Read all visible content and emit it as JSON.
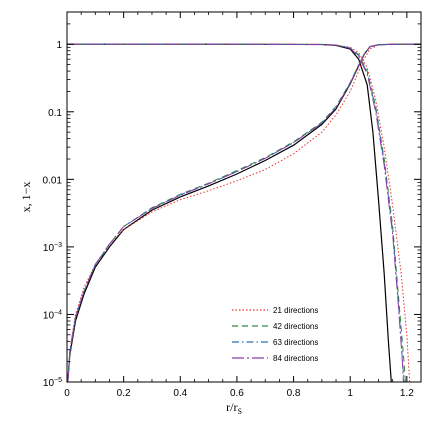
{
  "chart_data": {
    "type": "line",
    "xlabel": "r/r",
    "xlabel_sub": "S",
    "ylabel": "x, 1−x",
    "xlim": [
      0,
      1.25
    ],
    "ylim": [
      1e-05,
      3
    ],
    "y_scale": "log",
    "grid": false,
    "legend_position": "bottom-right",
    "x_ticks": [
      {
        "value": 0,
        "label": "0"
      },
      {
        "value": 0.2,
        "label": "0.2"
      },
      {
        "value": 0.4,
        "label": "0.4"
      },
      {
        "value": 0.6,
        "label": "0.6"
      },
      {
        "value": 0.8,
        "label": "0.8"
      },
      {
        "value": 1.0,
        "label": "1"
      },
      {
        "value": 1.2,
        "label": "1.2"
      }
    ],
    "y_ticks": [
      {
        "value": 1,
        "label": "1"
      },
      {
        "value": 0.1,
        "label": "0.1"
      },
      {
        "value": 0.01,
        "label": "0.01"
      },
      {
        "value": 0.001,
        "label": "10",
        "exp": "−3"
      },
      {
        "value": 0.0001,
        "label": "10",
        "exp": "−4"
      },
      {
        "value": 1e-05,
        "label": "10",
        "exp": "−5"
      }
    ],
    "series": [
      {
        "name": "",
        "color": "#000000",
        "dash": "",
        "neutral": [
          [
            0.003,
            1e-05
          ],
          [
            0.01,
            2.5e-05
          ],
          [
            0.03,
            8e-05
          ],
          [
            0.06,
            0.0002
          ],
          [
            0.1,
            0.0005
          ],
          [
            0.15,
            0.001
          ],
          [
            0.2,
            0.0018
          ],
          [
            0.3,
            0.0035
          ],
          [
            0.4,
            0.0055
          ],
          [
            0.5,
            0.008
          ],
          [
            0.6,
            0.012
          ],
          [
            0.7,
            0.019
          ],
          [
            0.8,
            0.032
          ],
          [
            0.9,
            0.065
          ],
          [
            0.95,
            0.11
          ],
          [
            1.0,
            0.26
          ],
          [
            1.03,
            0.48
          ],
          [
            1.05,
            0.72
          ],
          [
            1.07,
            0.92
          ],
          [
            1.1,
            0.985
          ],
          [
            1.15,
            0.998
          ],
          [
            1.2,
            1
          ],
          [
            1.25,
            1
          ]
        ],
        "ionized": [
          [
            0,
            1
          ],
          [
            0.5,
            1
          ],
          [
            0.9,
            0.99
          ],
          [
            0.95,
            0.96
          ],
          [
            1.0,
            0.85
          ],
          [
            1.03,
            0.6
          ],
          [
            1.06,
            0.25
          ],
          [
            1.08,
            0.05
          ],
          [
            1.1,
            0.005
          ],
          [
            1.12,
            0.0004
          ],
          [
            1.135,
            4e-05
          ],
          [
            1.145,
            1e-05
          ]
        ]
      },
      {
        "name": "21 directions",
        "color": "#e8302a",
        "dash": "1.5,2",
        "neutral": [
          [
            0.003,
            1e-05
          ],
          [
            0.01,
            3e-05
          ],
          [
            0.03,
            0.0001
          ],
          [
            0.06,
            0.00025
          ],
          [
            0.1,
            0.00055
          ],
          [
            0.15,
            0.0011
          ],
          [
            0.2,
            0.0018
          ],
          [
            0.3,
            0.0033
          ],
          [
            0.4,
            0.005
          ],
          [
            0.5,
            0.0068
          ],
          [
            0.6,
            0.0095
          ],
          [
            0.7,
            0.014
          ],
          [
            0.8,
            0.024
          ],
          [
            0.9,
            0.05
          ],
          [
            0.95,
            0.09
          ],
          [
            1.0,
            0.2
          ],
          [
            1.03,
            0.4
          ],
          [
            1.05,
            0.62
          ],
          [
            1.07,
            0.85
          ],
          [
            1.1,
            0.98
          ],
          [
            1.15,
            0.998
          ],
          [
            1.2,
            1
          ],
          [
            1.25,
            1
          ]
        ],
        "ionized": [
          [
            0,
            1
          ],
          [
            0.5,
            1
          ],
          [
            0.9,
            0.99
          ],
          [
            0.95,
            0.97
          ],
          [
            1.0,
            0.9
          ],
          [
            1.03,
            0.75
          ],
          [
            1.06,
            0.45
          ],
          [
            1.09,
            0.15
          ],
          [
            1.12,
            0.03
          ],
          [
            1.15,
            0.004
          ],
          [
            1.18,
            0.0004
          ],
          [
            1.2,
            5e-05
          ],
          [
            1.21,
            1e-05
          ]
        ]
      },
      {
        "name": "42 directions",
        "color": "#2e8b3d",
        "dash": "6,4",
        "neutral": [
          [
            0.003,
            1e-05
          ],
          [
            0.01,
            2.8e-05
          ],
          [
            0.03,
            9e-05
          ],
          [
            0.06,
            0.00022
          ],
          [
            0.1,
            0.00055
          ],
          [
            0.12,
            0.0007
          ],
          [
            0.15,
            0.0011
          ],
          [
            0.2,
            0.002
          ],
          [
            0.3,
            0.0038
          ],
          [
            0.4,
            0.006
          ],
          [
            0.5,
            0.0088
          ],
          [
            0.6,
            0.0135
          ],
          [
            0.7,
            0.021
          ],
          [
            0.8,
            0.036
          ],
          [
            0.9,
            0.07
          ],
          [
            0.95,
            0.12
          ],
          [
            1.0,
            0.27
          ],
          [
            1.03,
            0.5
          ],
          [
            1.05,
            0.73
          ],
          [
            1.07,
            0.92
          ],
          [
            1.1,
            0.985
          ],
          [
            1.15,
            0.998
          ],
          [
            1.2,
            1
          ],
          [
            1.25,
            1
          ]
        ],
        "ionized": [
          [
            0,
            1
          ],
          [
            0.5,
            1
          ],
          [
            0.9,
            0.99
          ],
          [
            0.95,
            0.97
          ],
          [
            1.0,
            0.88
          ],
          [
            1.03,
            0.7
          ],
          [
            1.06,
            0.4
          ],
          [
            1.09,
            0.12
          ],
          [
            1.12,
            0.02
          ],
          [
            1.15,
            0.002
          ],
          [
            1.17,
            0.0002
          ],
          [
            1.19,
            2e-05
          ],
          [
            1.195,
            1e-05
          ]
        ]
      },
      {
        "name": "63 directions",
        "color": "#2f6fb5",
        "dash": "7,3,1.5,3",
        "neutral": [
          [
            0.003,
            1e-05
          ],
          [
            0.01,
            2.7e-05
          ],
          [
            0.03,
            9e-05
          ],
          [
            0.06,
            0.00022
          ],
          [
            0.1,
            0.00054
          ],
          [
            0.15,
            0.0011
          ],
          [
            0.2,
            0.002
          ],
          [
            0.3,
            0.0037
          ],
          [
            0.4,
            0.0059
          ],
          [
            0.5,
            0.0086
          ],
          [
            0.6,
            0.013
          ],
          [
            0.7,
            0.0205
          ],
          [
            0.8,
            0.035
          ],
          [
            0.9,
            0.068
          ],
          [
            0.95,
            0.115
          ],
          [
            1.0,
            0.265
          ],
          [
            1.03,
            0.49
          ],
          [
            1.05,
            0.72
          ],
          [
            1.07,
            0.92
          ],
          [
            1.1,
            0.985
          ],
          [
            1.15,
            0.998
          ],
          [
            1.2,
            1
          ],
          [
            1.25,
            1
          ]
        ],
        "ionized": [
          [
            0,
            1
          ],
          [
            0.5,
            1
          ],
          [
            0.9,
            0.99
          ],
          [
            0.95,
            0.97
          ],
          [
            1.0,
            0.88
          ],
          [
            1.03,
            0.68
          ],
          [
            1.06,
            0.38
          ],
          [
            1.09,
            0.11
          ],
          [
            1.12,
            0.018
          ],
          [
            1.15,
            0.0017
          ],
          [
            1.17,
            0.00016
          ],
          [
            1.185,
            2e-05
          ],
          [
            1.19,
            1e-05
          ]
        ]
      },
      {
        "name": "84 directions",
        "color": "#8a3fa8",
        "dash": "12,3,2,3",
        "neutral": [
          [
            0.003,
            1e-05
          ],
          [
            0.01,
            2.7e-05
          ],
          [
            0.03,
            9e-05
          ],
          [
            0.06,
            0.00022
          ],
          [
            0.1,
            0.00055
          ],
          [
            0.15,
            0.0011
          ],
          [
            0.2,
            0.002
          ],
          [
            0.3,
            0.0037
          ],
          [
            0.4,
            0.0058
          ],
          [
            0.5,
            0.0086
          ],
          [
            0.6,
            0.013
          ],
          [
            0.7,
            0.0205
          ],
          [
            0.8,
            0.035
          ],
          [
            0.9,
            0.068
          ],
          [
            0.95,
            0.115
          ],
          [
            1.0,
            0.265
          ],
          [
            1.03,
            0.49
          ],
          [
            1.05,
            0.72
          ],
          [
            1.07,
            0.92
          ],
          [
            1.1,
            0.985
          ],
          [
            1.15,
            0.998
          ],
          [
            1.2,
            1
          ],
          [
            1.25,
            1
          ]
        ],
        "ionized": [
          [
            0,
            1
          ],
          [
            0.5,
            1
          ],
          [
            0.9,
            0.99
          ],
          [
            0.95,
            0.97
          ],
          [
            1.0,
            0.87
          ],
          [
            1.03,
            0.66
          ],
          [
            1.06,
            0.36
          ],
          [
            1.09,
            0.1
          ],
          [
            1.12,
            0.016
          ],
          [
            1.15,
            0.0015
          ],
          [
            1.17,
            0.00014
          ],
          [
            1.185,
            1.8e-05
          ],
          [
            1.188,
            1e-05
          ]
        ]
      }
    ]
  }
}
